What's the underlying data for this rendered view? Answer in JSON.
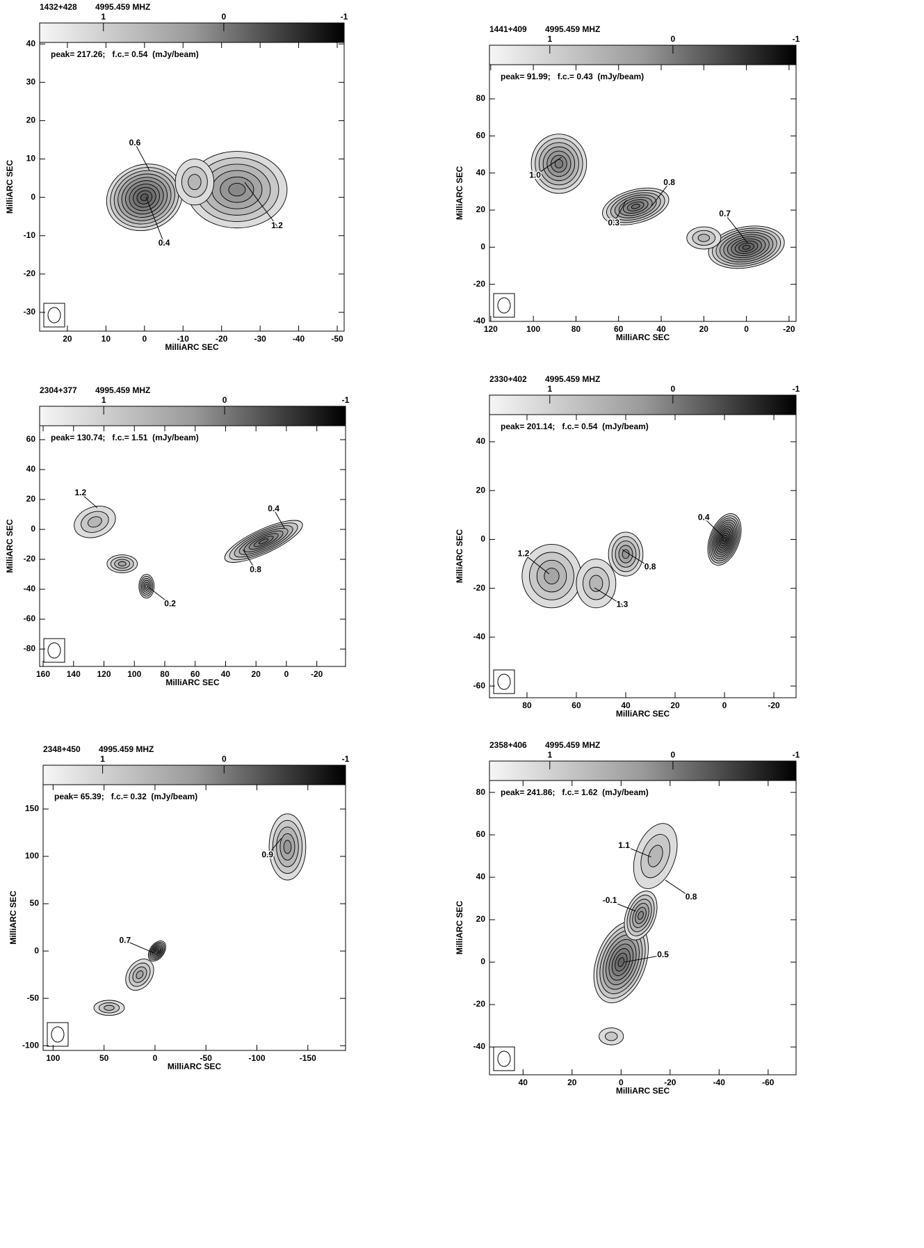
{
  "chart_data": [
    {
      "type": "contour",
      "title": "1432+428",
      "subtitle": "4995.459 MHZ",
      "note": "peak= 217.26;   f.c.= 0.54  (mJy/beam)",
      "xlabel": "MilliARC SEC",
      "ylabel": "MilliARC SEC",
      "xlim": [
        27.2,
        -51.8
      ],
      "ylim": [
        -34.9,
        40.4
      ],
      "xticks": [
        20,
        10,
        0,
        -10,
        -20,
        -30,
        -40,
        -50
      ],
      "yticks": [
        -30,
        -20,
        -10,
        0,
        10,
        20,
        30,
        40
      ],
      "clim": [
        1.53,
        -1
      ],
      "cticks": [
        1,
        0,
        -1
      ],
      "labels": [
        "0.6",
        "0.4",
        "1.2"
      ]
    },
    {
      "type": "contour",
      "title": "1441+409",
      "subtitle": "4995.459 MHZ",
      "note": "peak= 91.99;   f.c.= 0.43  (mJy/beam)",
      "xlabel": "MilliARC SEC",
      "ylabel": "MilliARC SEC",
      "xlim": [
        120.6,
        -23.3
      ],
      "ylim": [
        -40,
        98.4
      ],
      "xticks": [
        120,
        100,
        80,
        60,
        40,
        20,
        0,
        -20
      ],
      "yticks": [
        -40,
        -20,
        0,
        20,
        40,
        60,
        80
      ],
      "clim": [
        1.49,
        -1
      ],
      "cticks": [
        1,
        0,
        -1
      ],
      "labels": [
        "1.0",
        "0.8",
        "0.3",
        "0.7"
      ]
    },
    {
      "type": "contour",
      "title": "2304+377",
      "subtitle": "4995.459 MHZ",
      "note": "peak= 130.74;   f.c.= 1.51  (mJy/beam)",
      "xlabel": "MilliARC SEC",
      "ylabel": "MilliARC SEC",
      "xlim": [
        162.3,
        -38.9
      ],
      "ylim": [
        -91.6,
        69.3
      ],
      "xticks": [
        160,
        140,
        120,
        100,
        80,
        60,
        40,
        20,
        0,
        -20
      ],
      "yticks": [
        -80,
        -60,
        -40,
        -20,
        0,
        20,
        40,
        60
      ],
      "clim": [
        1.53,
        -1
      ],
      "cticks": [
        1,
        0,
        -1
      ],
      "labels": [
        "1.2",
        "0.4",
        "0.8",
        "0.2"
      ]
    },
    {
      "type": "contour",
      "title": "2330+402",
      "subtitle": "4995.459 MHZ",
      "note": "peak= 201.14;   f.c.= 0.54  (mJy/beam)",
      "xlabel": "MilliARC SEC",
      "ylabel": "MilliARC SEC",
      "xlim": [
        95.2,
        -29
      ],
      "ylim": [
        -64.8,
        51.1
      ],
      "xticks": [
        80,
        60,
        40,
        20,
        0,
        -20
      ],
      "yticks": [
        -60,
        -40,
        -20,
        0,
        20,
        40
      ],
      "clim": [
        1.49,
        -1
      ],
      "cticks": [
        1,
        0,
        -1
      ],
      "labels": [
        "1.2",
        "0.4",
        "0.8",
        "1.3"
      ]
    },
    {
      "type": "contour",
      "title": "2348+450",
      "subtitle": "4995.459 MHZ",
      "note": "peak= 65.39;   f.c.= 0.32  (mJy/beam)",
      "xlabel": "MilliARC SEC",
      "ylabel": "MilliARC SEC",
      "xlim": [
        109.8,
        -187
      ],
      "ylim": [
        -105,
        175.7
      ],
      "xticks": [
        100,
        50,
        0,
        -50,
        -100,
        -150
      ],
      "yticks": [
        -100,
        -50,
        0,
        50,
        100,
        150
      ],
      "clim": [
        1.49,
        -1
      ],
      "cticks": [
        1,
        0,
        -1
      ],
      "labels": [
        "0.7",
        "0.9"
      ]
    },
    {
      "type": "contour",
      "title": "2358+406",
      "subtitle": "4995.459 MHZ",
      "note": "peak= 241.86;   f.c.= 1.62  (mJy/beam)",
      "xlabel": "MilliARC SEC",
      "ylabel": "MilliARC SEC",
      "xlim": [
        53.7,
        -71.4
      ],
      "ylim": [
        -53.1,
        85.6
      ],
      "xticks": [
        40,
        20,
        0,
        -20,
        -40,
        -60
      ],
      "yticks": [
        -40,
        -20,
        0,
        20,
        40,
        60,
        80
      ],
      "clim": [
        1.49,
        -1
      ],
      "cticks": [
        1,
        0,
        -1
      ],
      "labels": [
        "1.1",
        "0.8",
        "-0.1",
        "0.5"
      ]
    }
  ]
}
